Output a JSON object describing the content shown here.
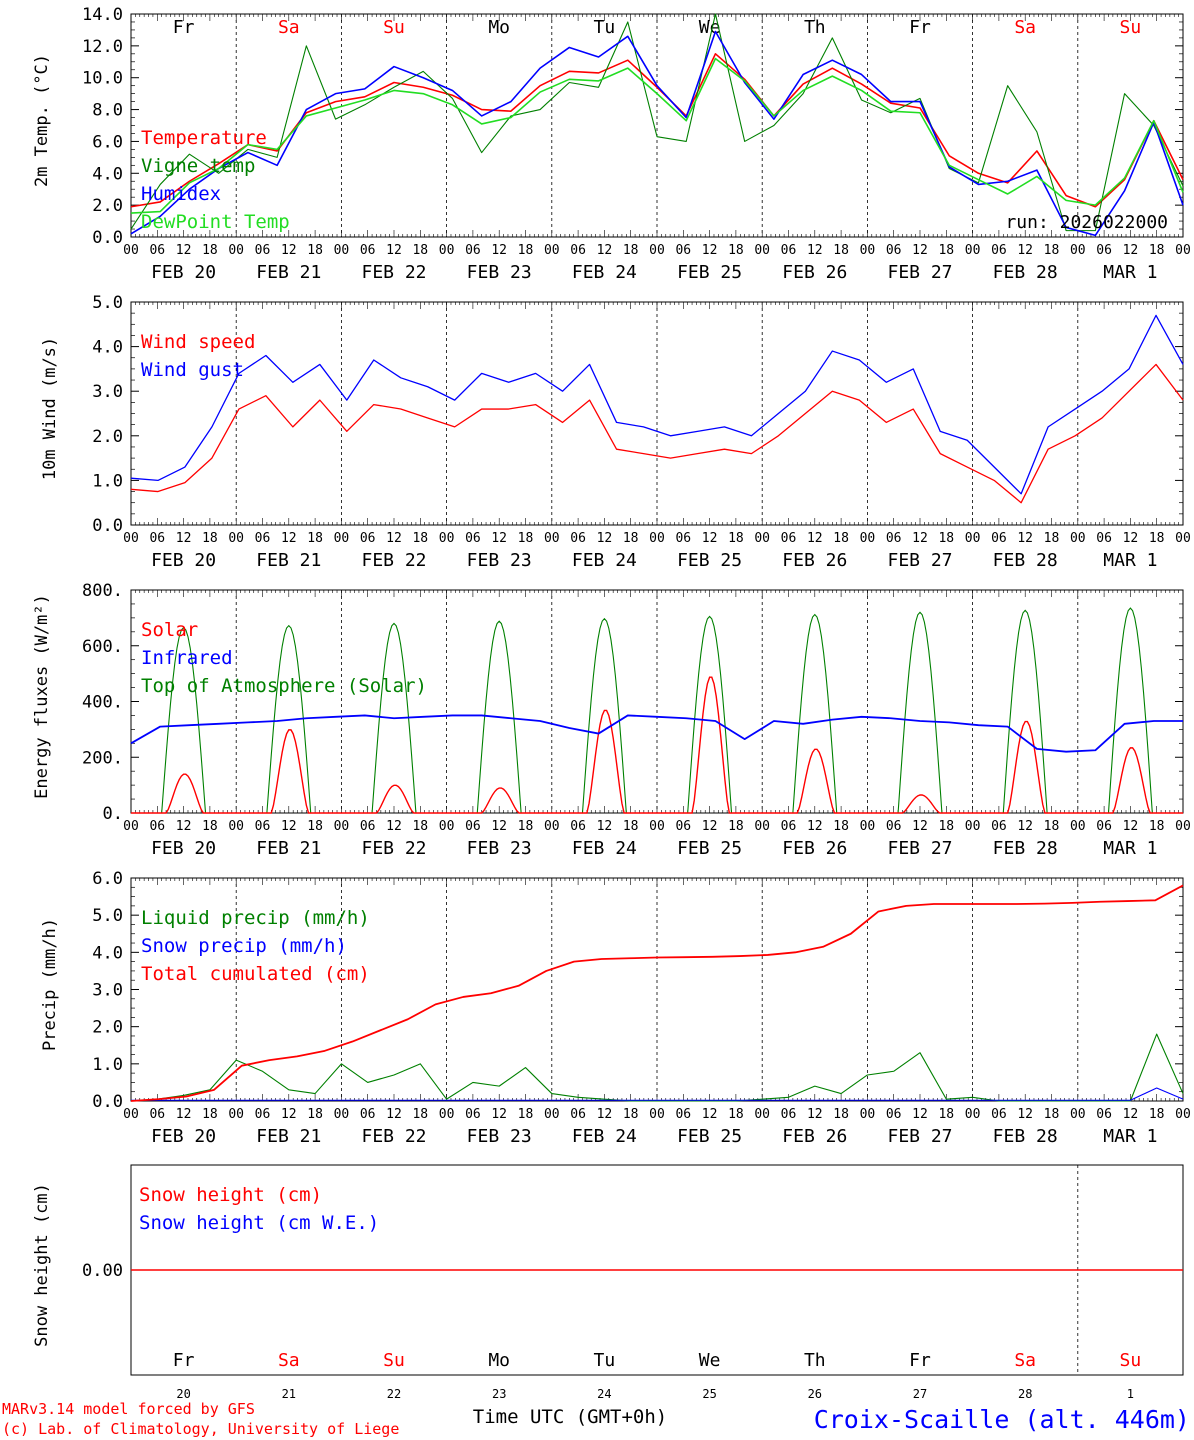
{
  "day_names": [
    "Fr",
    "Sa",
    "Su",
    "Mo",
    "Tu",
    "We",
    "Th",
    "Fr",
    "Sa",
    "Su"
  ],
  "weekend_color": "#ff0000",
  "date_labels": [
    "FEB 20",
    "FEB 21",
    "FEB 22",
    "FEB 23",
    "FEB 24",
    "FEB 25",
    "FEB 26",
    "FEB 27",
    "FEB 28",
    "MAR  1"
  ],
  "hour_ticks": [
    "00",
    "06",
    "12",
    "18"
  ],
  "day_numbers": [
    "20",
    "21",
    "22",
    "23",
    "24",
    "25",
    "26",
    "27",
    "28",
    "1"
  ],
  "run_label": "run: 2026022000",
  "footer": {
    "model_line": "MARv3.14 model forced by GFS",
    "lab_line": "(c) Lab. of Climatology, University of Liege",
    "xlabel": "Time UTC (GMT+0h)",
    "station": "Croix-Scaille (alt. 446m)"
  },
  "colors": {
    "red": "#ff0000",
    "green": "#008000",
    "blue": "#0000ff",
    "lightgreen": "#22dd22",
    "text": "#000000"
  },
  "chart_data": [
    {
      "type": "line",
      "ylabel": "2m Temp. (°C)",
      "ylim": [
        0,
        14
      ],
      "yticks": [
        "0.0",
        "2.0",
        "4.0",
        "6.0",
        "8.0",
        "10.0",
        "12.0",
        "14.0"
      ],
      "x_hours": [
        0,
        6,
        12,
        18,
        24,
        30,
        36,
        42,
        48,
        54,
        60,
        66,
        72,
        78,
        84,
        90,
        96,
        102,
        108,
        114,
        120,
        126,
        132,
        138,
        144,
        150,
        156,
        162,
        168,
        174,
        180,
        186,
        192,
        198,
        204,
        210,
        216,
        222,
        228,
        234,
        240
      ],
      "series": [
        {
          "name": "Temperature",
          "color": "red",
          "values": [
            1.9,
            2.2,
            3.5,
            4.6,
            5.8,
            5.4,
            7.8,
            8.5,
            8.8,
            9.7,
            9.4,
            8.9,
            8.0,
            7.9,
            9.5,
            10.4,
            10.3,
            11.1,
            9.4,
            7.6,
            11.5,
            9.9,
            7.6,
            9.6,
            10.6,
            9.6,
            8.4,
            8.1,
            5.1,
            4.0,
            3.4,
            5.4,
            2.6,
            1.9,
            3.6,
            7.3,
            3.6
          ]
        },
        {
          "name": "Vigne temp",
          "color": "green",
          "values": [
            0.5,
            3.3,
            5.2,
            4.0,
            5.5,
            5.0,
            12.0,
            7.4,
            8.3,
            9.4,
            10.4,
            8.7,
            5.3,
            7.6,
            8.0,
            9.7,
            9.4,
            13.5,
            6.3,
            6.0,
            14.0,
            6.0,
            7.0,
            9.0,
            12.5,
            8.6,
            7.8,
            8.7,
            4.3,
            3.4,
            9.5,
            6.6,
            0.4,
            0.4,
            9.0,
            7.0,
            3.2
          ]
        },
        {
          "name": "Humidex",
          "color": "blue",
          "values": [
            0.2,
            1.3,
            3.0,
            4.3,
            5.3,
            4.5,
            8.0,
            9.0,
            9.3,
            10.7,
            10.0,
            9.2,
            7.6,
            8.5,
            10.6,
            11.9,
            11.3,
            12.6,
            9.5,
            7.5,
            12.9,
            9.7,
            7.4,
            10.2,
            11.1,
            10.2,
            8.5,
            8.5,
            4.4,
            3.3,
            3.5,
            4.2,
            0.6,
            0.1,
            2.9,
            7.2,
            2.0
          ]
        },
        {
          "name": "DewPoint Temp",
          "color": "lightgreen",
          "values": [
            1.5,
            1.6,
            3.4,
            4.3,
            5.8,
            5.5,
            7.6,
            8.1,
            8.6,
            9.2,
            9.0,
            8.3,
            7.1,
            7.5,
            9.1,
            9.9,
            9.8,
            10.6,
            9.0,
            7.3,
            11.2,
            9.8,
            7.6,
            9.2,
            10.1,
            9.2,
            7.9,
            7.8,
            4.5,
            3.6,
            2.7,
            3.8,
            2.3,
            2.0,
            3.7,
            7.3,
            2.8
          ]
        }
      ]
    },
    {
      "type": "line",
      "ylabel": "10m Wind (m/s)",
      "ylim": [
        0,
        5
      ],
      "yticks": [
        "0.0",
        "1.0",
        "2.0",
        "3.0",
        "4.0",
        "5.0"
      ],
      "series": [
        {
          "name": "Wind speed",
          "color": "red",
          "values": [
            0.8,
            0.75,
            0.95,
            1.5,
            2.6,
            2.9,
            2.2,
            2.8,
            2.1,
            2.7,
            2.6,
            2.4,
            2.2,
            2.6,
            2.6,
            2.7,
            2.3,
            2.8,
            1.7,
            1.6,
            1.5,
            1.6,
            1.7,
            1.6,
            2.0,
            2.5,
            3.0,
            2.8,
            2.3,
            2.6,
            1.6,
            1.3,
            1.0,
            0.5,
            1.7,
            2.0,
            2.4,
            3.0,
            3.6,
            2.8
          ]
        },
        {
          "name": "Wind gust",
          "color": "blue",
          "values": [
            1.05,
            1.0,
            1.3,
            2.2,
            3.4,
            3.8,
            3.2,
            3.6,
            2.8,
            3.7,
            3.3,
            3.1,
            2.8,
            3.4,
            3.2,
            3.4,
            3.0,
            3.6,
            2.3,
            2.2,
            2.0,
            2.1,
            2.2,
            2.0,
            2.5,
            3.0,
            3.9,
            3.7,
            3.2,
            3.5,
            2.1,
            1.9,
            1.3,
            0.7,
            2.2,
            2.6,
            3.0,
            3.5,
            4.7,
            3.6
          ]
        }
      ]
    },
    {
      "type": "line",
      "ylabel": "Energy fluxes (W/m²)",
      "ylim": [
        0,
        800
      ],
      "yticks": [
        "0.",
        "200.",
        "400.",
        "600.",
        "800."
      ],
      "series": [
        {
          "name": "Solar",
          "color": "red",
          "day_peaks": [
            140,
            300,
            100,
            90,
            370,
            490,
            230,
            65,
            330,
            235
          ]
        },
        {
          "name": "Infrared",
          "color": "blue",
          "values": [
            250,
            310,
            315,
            320,
            325,
            330,
            340,
            345,
            350,
            340,
            345,
            350,
            350,
            340,
            330,
            305,
            285,
            350,
            345,
            340,
            330,
            265,
            330,
            320,
            335,
            345,
            340,
            330,
            325,
            315,
            310,
            230,
            220,
            225,
            320,
            330,
            330
          ]
        },
        {
          "name": "Top of Atmosphere (Solar)",
          "color": "green",
          "day_peaks": [
            665,
            672,
            680,
            688,
            697,
            705,
            712,
            720,
            727,
            735
          ]
        }
      ]
    },
    {
      "type": "line",
      "ylabel": "Precip (mm/h)",
      "ylim": [
        0,
        6
      ],
      "yticks": [
        "0.0",
        "1.0",
        "2.0",
        "3.0",
        "4.0",
        "5.0",
        "6.0"
      ],
      "series": [
        {
          "name": "Liquid precip (mm/h)",
          "color": "green",
          "values": [
            0.0,
            0.05,
            0.15,
            0.3,
            1.1,
            0.8,
            0.3,
            0.2,
            1.0,
            0.5,
            0.7,
            1.0,
            0.05,
            0.5,
            0.4,
            0.9,
            0.2,
            0.1,
            0.05,
            0.0,
            0.0,
            0.0,
            0.0,
            0.0,
            0.05,
            0.1,
            0.4,
            0.2,
            0.7,
            0.8,
            1.3,
            0.05,
            0.1,
            0.0,
            0.0,
            0.0,
            0.0,
            0.0,
            0.0,
            1.8,
            0.2
          ]
        },
        {
          "name": "Snow precip (mm/h)",
          "color": "blue",
          "values": [
            0.02,
            0.02,
            0.02,
            0.02,
            0.02,
            0.02,
            0.02,
            0.02,
            0.02,
            0.02,
            0.02,
            0.02,
            0.02,
            0.02,
            0.02,
            0.02,
            0.02,
            0.02,
            0.02,
            0.02,
            0.02,
            0.02,
            0.02,
            0.02,
            0.02,
            0.02,
            0.02,
            0.02,
            0.02,
            0.02,
            0.02,
            0.02,
            0.02,
            0.02,
            0.02,
            0.02,
            0.02,
            0.02,
            0.02,
            0.35,
            0.05
          ]
        },
        {
          "name": "Total cumulated (cm)",
          "color": "red",
          "values": [
            0.0,
            0.05,
            0.12,
            0.3,
            0.95,
            1.1,
            1.2,
            1.35,
            1.6,
            1.9,
            2.2,
            2.6,
            2.8,
            2.9,
            3.1,
            3.5,
            3.75,
            3.82,
            3.84,
            3.86,
            3.87,
            3.88,
            3.9,
            3.93,
            4.0,
            4.15,
            4.5,
            5.1,
            5.25,
            5.3,
            5.3,
            5.3,
            5.3,
            5.31,
            5.33,
            5.36,
            5.38,
            5.4,
            5.8
          ]
        }
      ]
    },
    {
      "type": "line",
      "ylabel": "Snow height (cm)",
      "yticks": [
        "0.00"
      ],
      "series": [
        {
          "name": "Snow height (cm)",
          "color": "red",
          "values": [
            0,
            0
          ]
        },
        {
          "name": "Snow height (cm W.E.)",
          "color": "blue",
          "values": [
            0,
            0
          ]
        }
      ]
    }
  ]
}
